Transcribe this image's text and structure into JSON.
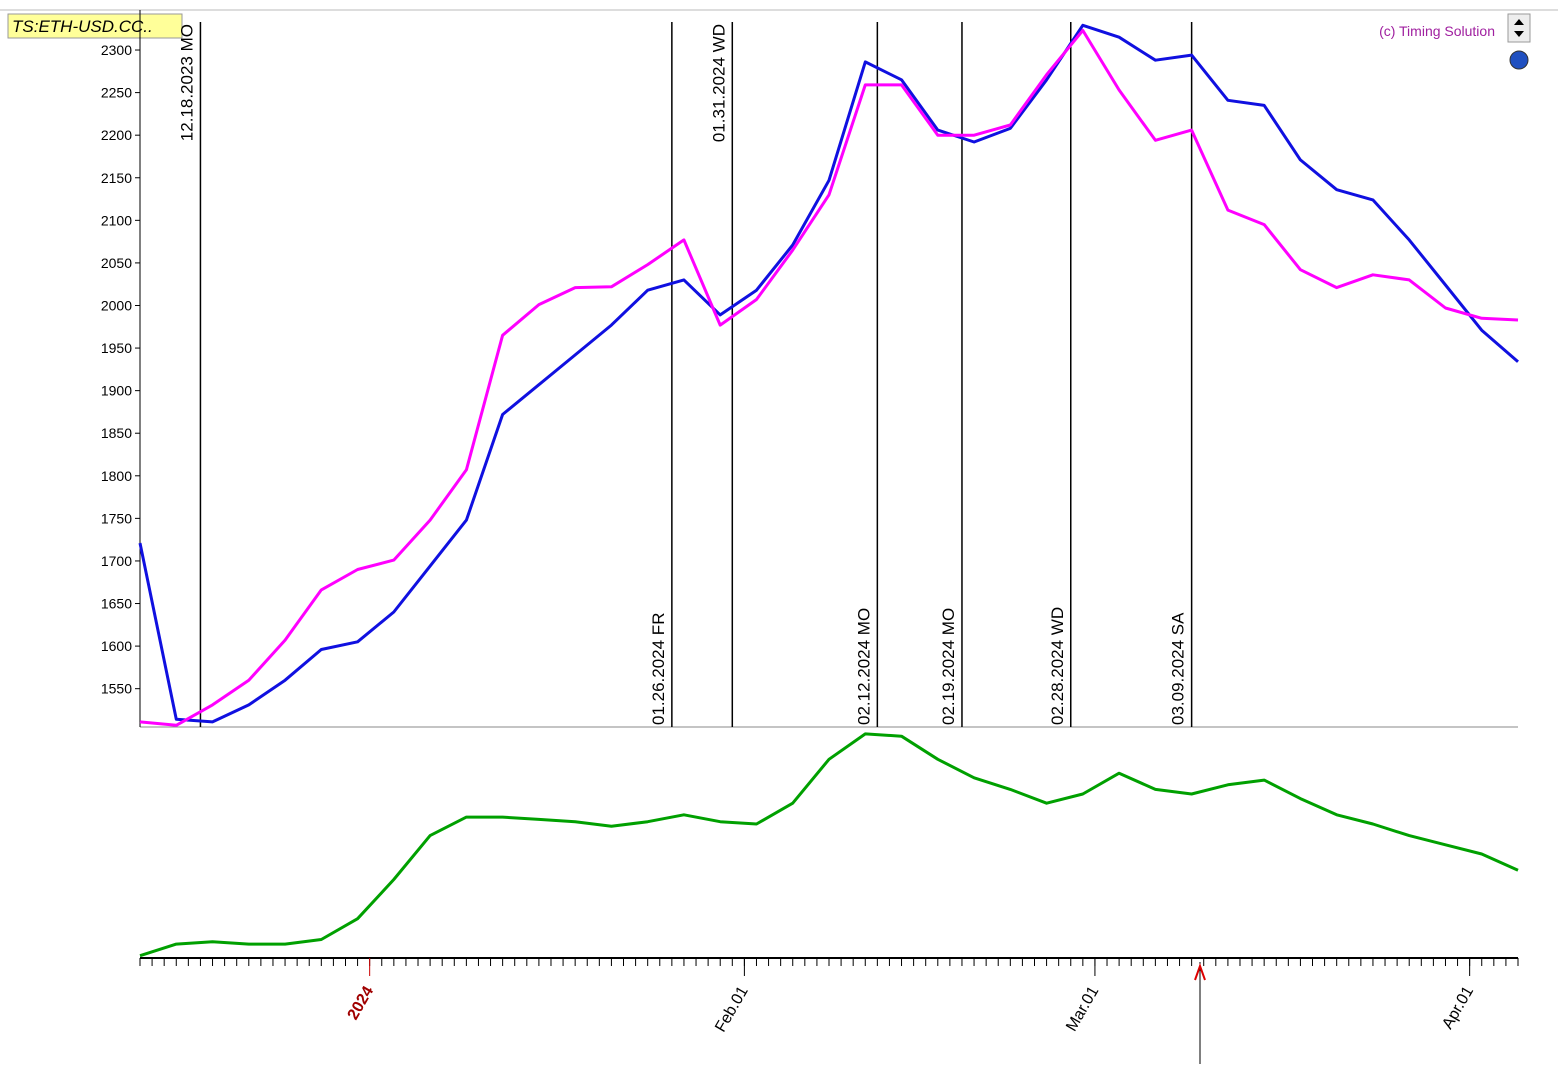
{
  "chart_data": [
    {
      "type": "line",
      "title": "TS:ETH-USD.CC..",
      "credit": "(c) Timing Solution",
      "x": [
        "2023-12-13",
        "2023-12-16",
        "2023-12-19",
        "2023-12-22",
        "2023-12-25",
        "2023-12-28",
        "2023-12-31",
        "2024-01-03",
        "2024-01-06",
        "2024-01-09",
        "2024-01-12",
        "2024-01-15",
        "2024-01-18",
        "2024-01-21",
        "2024-01-24",
        "2024-01-27",
        "2024-01-30",
        "2024-02-02",
        "2024-02-05",
        "2024-02-08",
        "2024-02-11",
        "2024-02-14",
        "2024-02-17",
        "2024-02-20",
        "2024-02-23",
        "2024-02-26",
        "2024-02-29",
        "2024-03-03",
        "2024-03-06",
        "2024-03-09",
        "2024-03-12",
        "2024-03-15",
        "2024-03-18",
        "2024-03-21",
        "2024-03-24",
        "2024-03-27",
        "2024-03-30",
        "2024-04-02",
        "2024-04-05"
      ],
      "xlim": [
        "2023-12-13",
        "2024-04-05"
      ],
      "ylim": [
        1505,
        2347
      ],
      "yticks": [
        1550,
        1600,
        1650,
        1700,
        1750,
        1800,
        1850,
        1900,
        1950,
        2000,
        2050,
        2100,
        2150,
        2200,
        2250,
        2300
      ],
      "series": [
        {
          "color": "#1010e0",
          "values": [
            1721,
            1514,
            1511,
            1531,
            1560,
            1596,
            1605,
            1640,
            1694,
            1748,
            1872,
            1907,
            1942,
            1977,
            2018,
            2030,
            1989,
            2018,
            2071,
            2147,
            2286,
            2265,
            2206,
            2192,
            2208,
            2265,
            2329,
            2315,
            2288,
            2294,
            2241,
            2235,
            2171,
            2136,
            2124,
            2077,
            2024,
            1971,
            1934
          ]
        },
        {
          "color": "#ff00ff",
          "values": [
            1511,
            1507,
            1531,
            1560,
            1607,
            1666,
            1690,
            1701,
            1748,
            1807,
            1965,
            2001,
            2021,
            2022,
            2048,
            2077,
            1977,
            2007,
            2065,
            2130,
            2259,
            2259,
            2200,
            2200,
            2212,
            2271,
            2323,
            2253,
            2194,
            2206,
            2112,
            2095,
            2042,
            2021,
            2036,
            2030,
            1997,
            1985,
            1983
          ]
        }
      ],
      "events": [
        {
          "date": "2023-12-18",
          "label": "12.18.2023 MO",
          "label_at": "top"
        },
        {
          "date": "2024-01-26",
          "label": "01.26.2024 FR",
          "label_at": "bottom"
        },
        {
          "date": "2024-01-31",
          "label": "01.31.2024 WD",
          "label_at": "top"
        },
        {
          "date": "2024-02-12",
          "label": "02.12.2024 MO",
          "label_at": "bottom"
        },
        {
          "date": "2024-02-19",
          "label": "02.19.2024 MO",
          "label_at": "bottom"
        },
        {
          "date": "2024-02-28",
          "label": "02.28.2024 WD",
          "label_at": "bottom"
        },
        {
          "date": "2024-03-09",
          "label": "03.09.2024 SA",
          "label_at": "bottom"
        }
      ]
    },
    {
      "type": "line",
      "x": [
        "2023-12-13",
        "2023-12-16",
        "2023-12-19",
        "2023-12-22",
        "2023-12-25",
        "2023-12-28",
        "2023-12-31",
        "2024-01-03",
        "2024-01-06",
        "2024-01-09",
        "2024-01-12",
        "2024-01-15",
        "2024-01-18",
        "2024-01-21",
        "2024-01-24",
        "2024-01-27",
        "2024-01-30",
        "2024-02-02",
        "2024-02-05",
        "2024-02-08",
        "2024-02-11",
        "2024-02-14",
        "2024-02-17",
        "2024-02-20",
        "2024-02-23",
        "2024-02-26",
        "2024-02-29",
        "2024-03-03",
        "2024-03-06",
        "2024-03-09",
        "2024-03-12",
        "2024-03-15",
        "2024-03-18",
        "2024-03-21",
        "2024-03-24",
        "2024-03-27",
        "2024-03-30",
        "2024-04-02",
        "2024-04-05"
      ],
      "xlim": [
        "2023-12-13",
        "2024-04-05"
      ],
      "ylim": [
        0,
        100
      ],
      "xticks": [
        {
          "value": "2024-01-01",
          "label": "2024"
        },
        {
          "value": "2024-02-01",
          "label": "Feb.01"
        },
        {
          "value": "2024-03-01",
          "label": "Mar.01"
        },
        {
          "value": "2024-04-01",
          "label": "Apr.01"
        }
      ],
      "series": [
        {
          "color": "#00a000",
          "values": [
            1,
            6,
            7,
            6,
            6,
            8,
            17,
            34,
            53,
            61,
            61,
            60,
            59,
            57,
            59,
            62,
            59,
            58,
            67,
            86,
            97,
            96,
            86,
            78,
            73,
            67,
            71,
            80,
            73,
            71,
            75,
            77,
            69,
            62,
            58,
            53,
            49,
            45,
            38
          ]
        }
      ]
    }
  ]
}
